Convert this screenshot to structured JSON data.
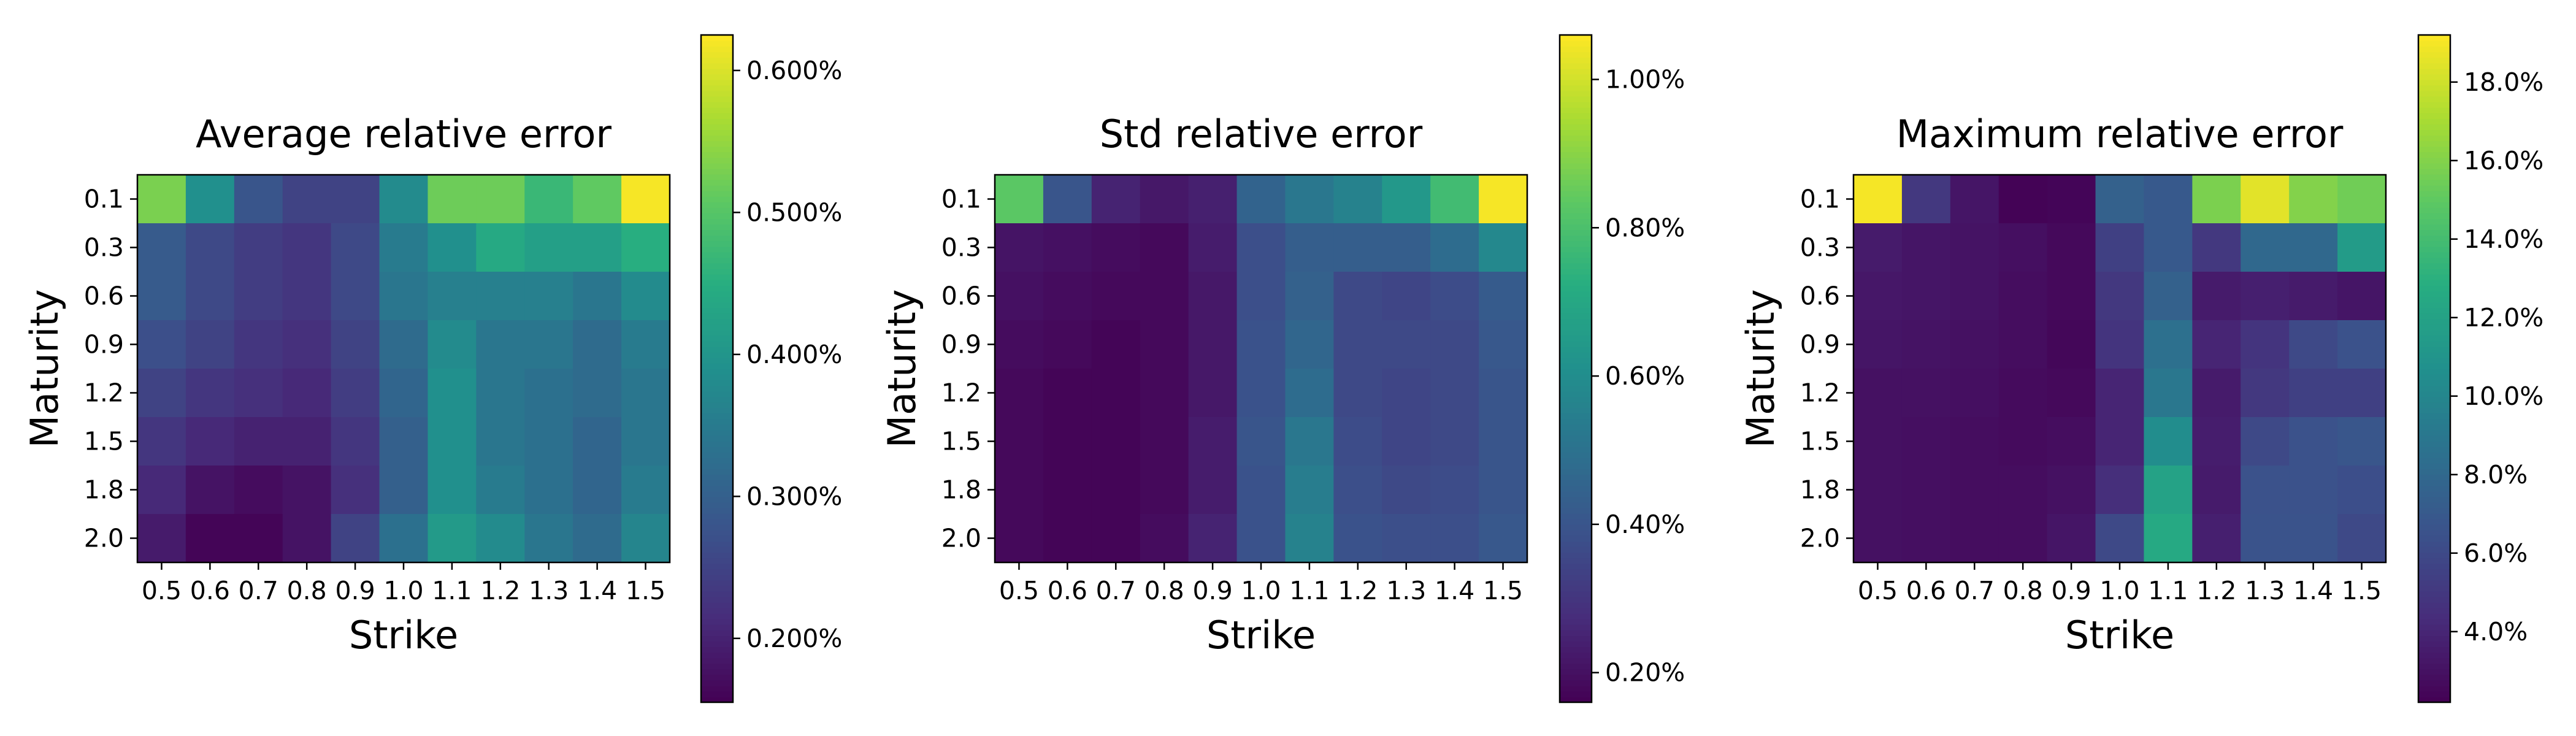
{
  "chart_data": [
    {
      "type": "heatmap",
      "title": "Average relative error",
      "xlabel": "Strike",
      "ylabel": "Maturity",
      "x": [
        "0.5",
        "0.6",
        "0.7",
        "0.8",
        "0.9",
        "1.0",
        "1.1",
        "1.2",
        "1.3",
        "1.4",
        "1.5"
      ],
      "y": [
        "0.1",
        "0.3",
        "0.6",
        "0.9",
        "1.2",
        "1.5",
        "1.8",
        "2.0"
      ],
      "values": [
        [
          0.53,
          0.39,
          0.28,
          0.25,
          0.25,
          0.38,
          0.52,
          0.52,
          0.47,
          0.51,
          0.62
        ],
        [
          0.29,
          0.26,
          0.24,
          0.23,
          0.26,
          0.35,
          0.39,
          0.44,
          0.42,
          0.42,
          0.45
        ],
        [
          0.29,
          0.26,
          0.24,
          0.23,
          0.26,
          0.34,
          0.36,
          0.36,
          0.36,
          0.34,
          0.38
        ],
        [
          0.27,
          0.25,
          0.23,
          0.22,
          0.25,
          0.32,
          0.38,
          0.34,
          0.34,
          0.32,
          0.35
        ],
        [
          0.25,
          0.23,
          0.22,
          0.21,
          0.24,
          0.31,
          0.39,
          0.34,
          0.33,
          0.32,
          0.34
        ],
        [
          0.23,
          0.21,
          0.2,
          0.2,
          0.23,
          0.3,
          0.39,
          0.34,
          0.33,
          0.31,
          0.34
        ],
        [
          0.21,
          0.18,
          0.17,
          0.18,
          0.22,
          0.3,
          0.39,
          0.35,
          0.33,
          0.31,
          0.35
        ],
        [
          0.19,
          0.16,
          0.16,
          0.18,
          0.25,
          0.33,
          0.41,
          0.38,
          0.34,
          0.32,
          0.37
        ]
      ],
      "colorbar": {
        "min": 0.155,
        "max": 0.625,
        "ticks": [
          0.2,
          0.3,
          0.4,
          0.5,
          0.6
        ],
        "tick_labels": [
          "0.200%",
          "0.300%",
          "0.400%",
          "0.500%",
          "0.600%"
        ]
      }
    },
    {
      "type": "heatmap",
      "title": "Std relative error",
      "xlabel": "Strike",
      "ylabel": "Maturity",
      "x": [
        "0.5",
        "0.6",
        "0.7",
        "0.8",
        "0.9",
        "1.0",
        "1.1",
        "1.2",
        "1.3",
        "1.4",
        "1.5"
      ],
      "y": [
        "0.1",
        "0.3",
        "0.6",
        "0.9",
        "1.2",
        "1.5",
        "1.8",
        "2.0"
      ],
      "values": [
        [
          0.83,
          0.4,
          0.25,
          0.22,
          0.24,
          0.45,
          0.52,
          0.56,
          0.64,
          0.78,
          1.05
        ],
        [
          0.21,
          0.2,
          0.19,
          0.18,
          0.23,
          0.38,
          0.43,
          0.43,
          0.43,
          0.48,
          0.58
        ],
        [
          0.2,
          0.19,
          0.18,
          0.18,
          0.22,
          0.38,
          0.44,
          0.36,
          0.35,
          0.37,
          0.42
        ],
        [
          0.19,
          0.18,
          0.17,
          0.18,
          0.22,
          0.39,
          0.46,
          0.36,
          0.36,
          0.36,
          0.41
        ],
        [
          0.18,
          0.17,
          0.17,
          0.18,
          0.22,
          0.39,
          0.48,
          0.36,
          0.35,
          0.36,
          0.4
        ],
        [
          0.18,
          0.17,
          0.17,
          0.18,
          0.23,
          0.4,
          0.52,
          0.37,
          0.35,
          0.36,
          0.4
        ],
        [
          0.18,
          0.17,
          0.17,
          0.18,
          0.23,
          0.39,
          0.54,
          0.38,
          0.36,
          0.37,
          0.4
        ],
        [
          0.18,
          0.17,
          0.17,
          0.19,
          0.25,
          0.39,
          0.56,
          0.39,
          0.38,
          0.38,
          0.41
        ]
      ],
      "colorbar": {
        "min": 0.16,
        "max": 1.06,
        "ticks": [
          0.2,
          0.4,
          0.6,
          0.8,
          1.0
        ],
        "tick_labels": [
          "0.20%",
          "0.40%",
          "0.60%",
          "0.80%",
          "1.00%"
        ]
      }
    },
    {
      "type": "heatmap",
      "title": "Maximum relative error",
      "xlabel": "Strike",
      "ylabel": "Maturity",
      "x": [
        "0.5",
        "0.6",
        "0.7",
        "0.8",
        "0.9",
        "1.0",
        "1.1",
        "1.2",
        "1.3",
        "1.4",
        "1.5"
      ],
      "y": [
        "0.1",
        "0.3",
        "0.6",
        "0.9",
        "1.2",
        "1.5",
        "1.8",
        "2.0"
      ],
      "values": [
        [
          19.0,
          5.0,
          3.2,
          2.3,
          2.4,
          7.5,
          7.0,
          15.8,
          18.5,
          16.0,
          15.5
        ],
        [
          3.5,
          3.2,
          3.1,
          2.9,
          2.6,
          5.5,
          7.0,
          5.0,
          8.0,
          8.0,
          11.5
        ],
        [
          3.3,
          3.2,
          3.1,
          2.8,
          2.6,
          5.0,
          7.5,
          3.5,
          3.7,
          3.5,
          3.2
        ],
        [
          3.2,
          3.1,
          3.0,
          2.8,
          2.5,
          4.8,
          8.5,
          4.0,
          4.8,
          6.0,
          6.5
        ],
        [
          3.0,
          3.0,
          2.9,
          2.7,
          2.6,
          4.0,
          9.0,
          3.5,
          5.0,
          5.5,
          5.5
        ],
        [
          3.0,
          2.9,
          2.8,
          2.7,
          2.8,
          4.0,
          10.5,
          3.6,
          6.0,
          6.5,
          6.8
        ],
        [
          3.0,
          2.9,
          2.8,
          2.8,
          3.0,
          4.5,
          12.0,
          3.5,
          6.5,
          6.5,
          6.3
        ],
        [
          3.0,
          2.9,
          2.8,
          2.8,
          3.2,
          6.0,
          12.5,
          3.7,
          6.6,
          6.6,
          6.0
        ]
      ],
      "colorbar": {
        "min": 2.2,
        "max": 19.2,
        "ticks": [
          4,
          6,
          8,
          10,
          12,
          14,
          16,
          18
        ],
        "tick_labels": [
          "4.0%",
          "6.0%",
          "8.0%",
          "10.0%",
          "12.0%",
          "14.0%",
          "16.0%",
          "18.0%"
        ]
      }
    }
  ]
}
